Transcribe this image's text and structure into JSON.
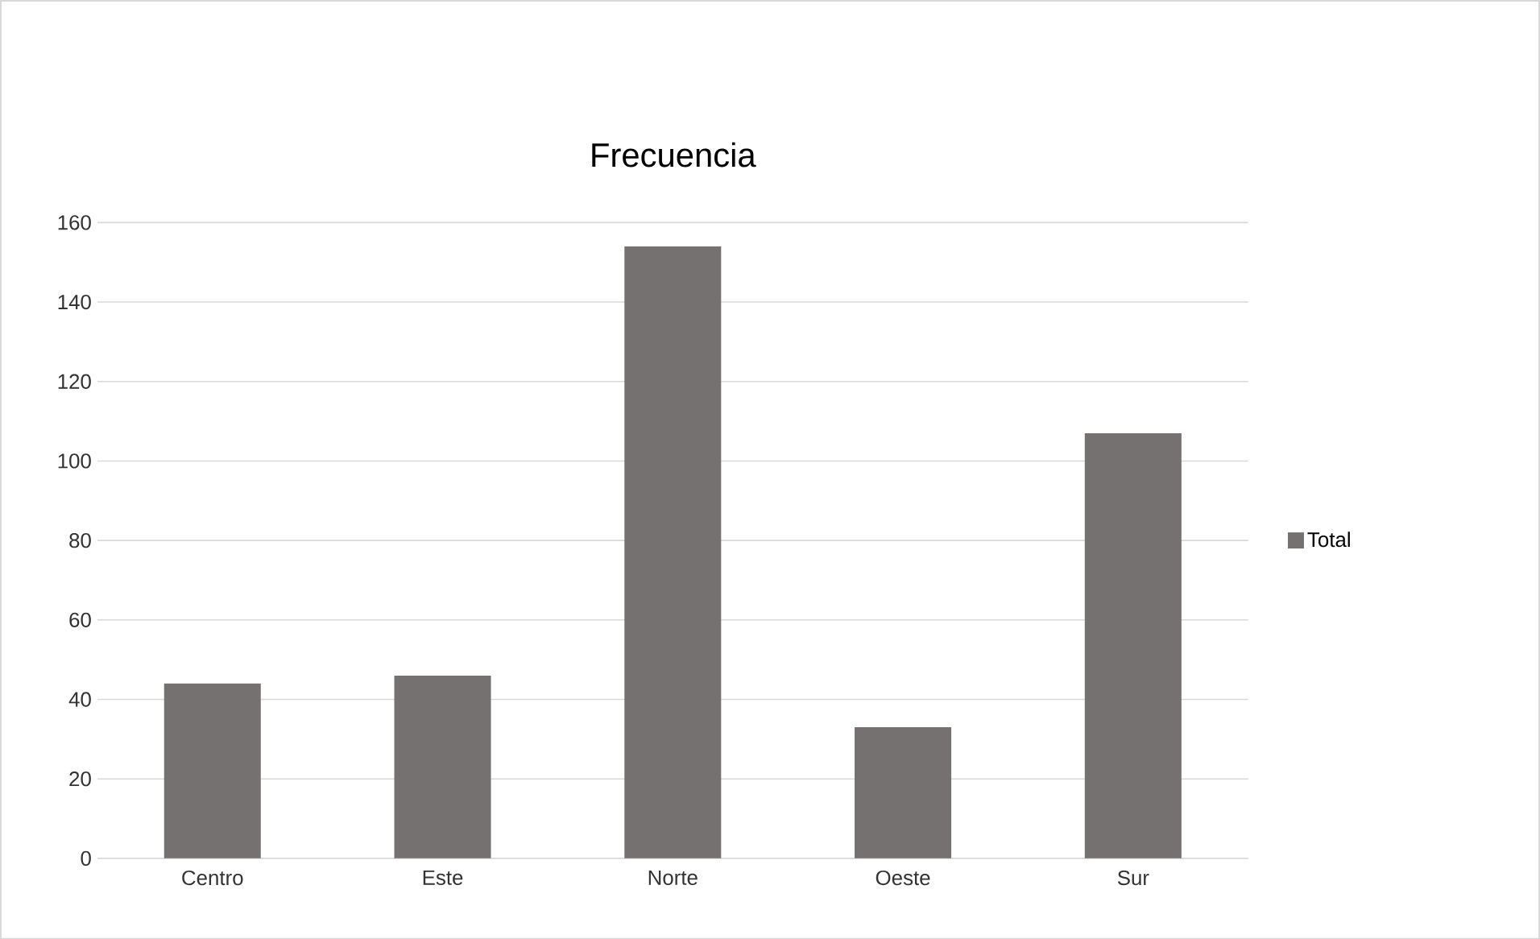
{
  "chart_data": {
    "type": "bar",
    "title": "Frecuencia",
    "categories": [
      "Centro",
      "Este",
      "Norte",
      "Oeste",
      "Sur"
    ],
    "series": [
      {
        "name": "Total",
        "color": "#767171",
        "values": [
          44,
          46,
          154,
          33,
          107
        ]
      }
    ],
    "ylim": [
      0,
      160
    ],
    "yticks": [
      0,
      20,
      40,
      60,
      80,
      100,
      120,
      140,
      160
    ],
    "grid": "y",
    "legend": "right"
  }
}
